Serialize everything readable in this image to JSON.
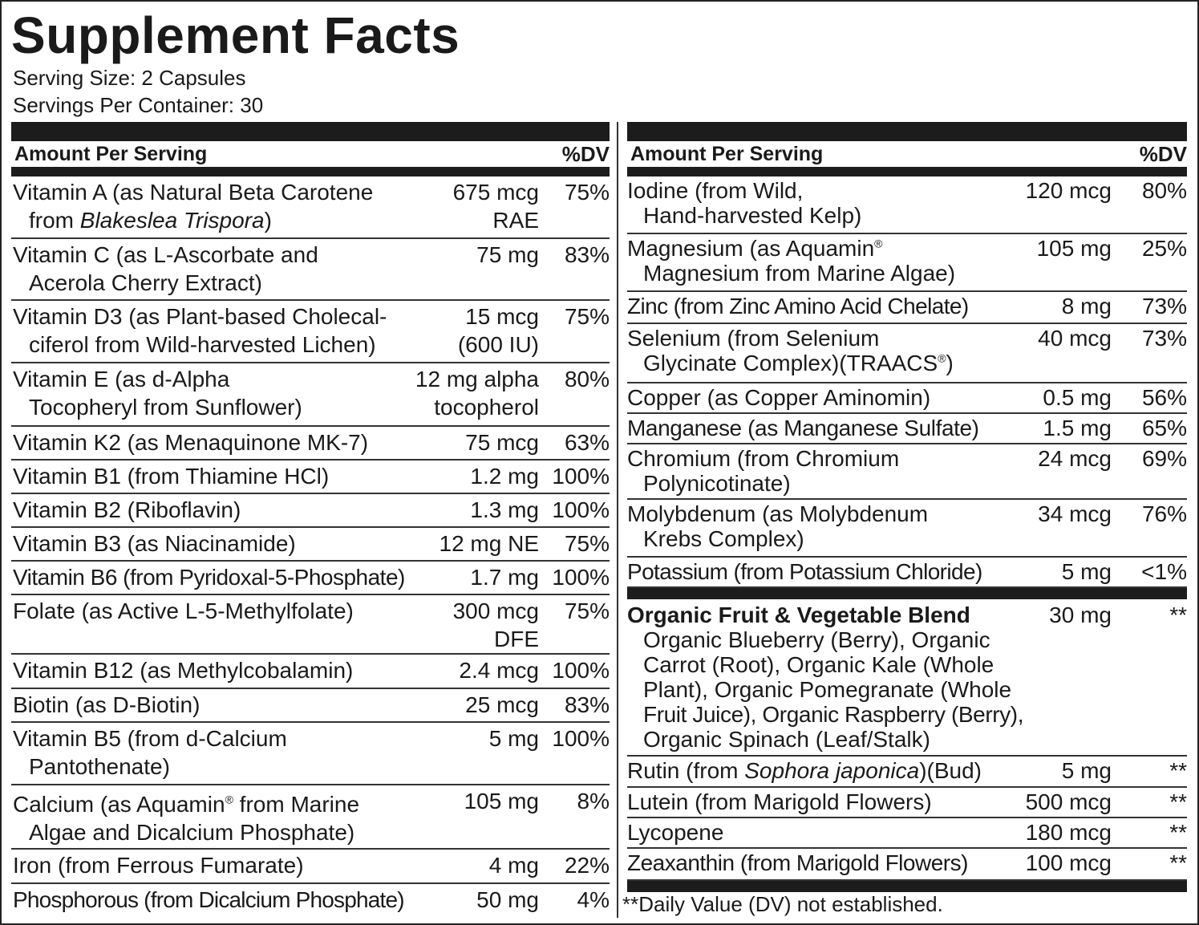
{
  "title": "Supplement Facts",
  "serving_size": "Serving Size: 2 Capsules",
  "servings_per_container": "Servings Per Container: 30",
  "header": {
    "amount": "Amount Per Serving",
    "dv": "%DV"
  },
  "left_rows": [
    {
      "line1": "Vitamin A (as Natural Beta Carotene",
      "line2_pre": "from ",
      "line2_ital": "Blakeslea Trispora",
      "line2_post": ")",
      "amount": "675 mcg\nRAE",
      "dv": "75%"
    },
    {
      "line1": "Vitamin C (as L-Ascorbate and",
      "line2": "Acerola Cherry Extract)",
      "amount": "75 mg",
      "dv": "83%"
    },
    {
      "line1": "Vitamin D3 (as Plant-based Cholecal-",
      "line2": "ciferol from Wild-harvested Lichen)",
      "amount": "15 mcg\n(600 IU)",
      "dv": "75%"
    },
    {
      "line1": "Vitamin E (as d-Alpha",
      "line2": "Tocopheryl from Sunflower)",
      "amount": "12 mg alpha\ntocopherol",
      "dv": "80%"
    },
    {
      "line1": "Vitamin K2 (as Menaquinone MK-7)",
      "amount": "75 mcg",
      "dv": "63%"
    },
    {
      "line1": "Vitamin B1 (from Thiamine HCl)",
      "amount": "1.2 mg",
      "dv": "100%"
    },
    {
      "line1": "Vitamin B2 (Riboflavin)",
      "amount": "1.3 mg",
      "dv": "100%"
    },
    {
      "line1": "Vitamin B3 (as Niacinamide)",
      "amount": "12 mg NE",
      "dv": "75%"
    },
    {
      "line1": "Vitamin B6 (from Pyridoxal-5-Phosphate)",
      "amount": "1.7 mg",
      "dv": "100%"
    },
    {
      "line1": "Folate (as Active L-5-Methylfolate)",
      "amount": "300 mcg\nDFE",
      "dv": "75%"
    },
    {
      "line1": "Vitamin B12 (as Methylcobalamin)",
      "amount": "2.4 mcg",
      "dv": "100%"
    },
    {
      "line1": "Biotin (as D-Biotin)",
      "amount": "25 mcg",
      "dv": "83%"
    },
    {
      "line1": "Vitamin B5 (from d-Calcium",
      "line2": "Pantothenate)",
      "amount": "5 mg",
      "dv": "100%"
    },
    {
      "line1_pre": "Calcium (as Aquamin",
      "line1_sup": "®",
      "line1_post": " from Marine",
      "line2": "Algae and Dicalcium Phosphate)",
      "amount": "105 mg",
      "dv": "8%"
    },
    {
      "line1": "Iron (from Ferrous Fumarate)",
      "amount": "4 mg",
      "dv": "22%"
    },
    {
      "line1": "Phosphorous (from Dicalcium Phosphate)",
      "amount": "50 mg",
      "dv": "4%"
    }
  ],
  "right_rows": [
    {
      "line1": "Iodine (from Wild,",
      "line2": "Hand-harvested Kelp)",
      "amount": "120 mcg",
      "dv": "80%"
    },
    {
      "line1_pre": "Magnesium (as Aquamin",
      "line1_sup": "®",
      "line2": "Magnesium from Marine Algae)",
      "amount": "105 mg",
      "dv": "25%"
    },
    {
      "line1": "Zinc (from Zinc Amino Acid Chelate)",
      "amount": "8 mg",
      "dv": "73%"
    },
    {
      "line1": "Selenium (from Selenium",
      "line2_pre": "Glycinate Complex)(TRAACS",
      "line2_sup": "®",
      "line2_post": ")",
      "amount": "40 mcg",
      "dv": "73%"
    },
    {
      "line1": "Copper (as Copper Aminomin)",
      "amount": "0.5 mg",
      "dv": "56%"
    },
    {
      "line1": "Manganese (as Manganese Sulfate)",
      "amount": "1.5 mg",
      "dv": "65%"
    },
    {
      "line1": "Chromium (from Chromium",
      "line2": "Polynicotinate)",
      "amount": "24 mcg",
      "dv": "69%"
    },
    {
      "line1": "Molybdenum (as Molybdenum",
      "line2": "Krebs Complex)",
      "amount": "34 mcg",
      "dv": "76%"
    },
    {
      "line1": "Potassium (from Potassium Chloride)",
      "amount": "5 mg",
      "dv": "<1%"
    }
  ],
  "blend": {
    "name": "Organic Fruit & Vegetable Blend",
    "amount": "30 mg",
    "dv": "**",
    "ingredients": [
      "Organic Blueberry (Berry), Organic",
      "Carrot (Root), Organic Kale (Whole",
      "Plant), Organic Pomegranate (Whole",
      "Fruit Juice), Organic Raspberry (Berry),",
      "Organic Spinach (Leaf/Stalk)"
    ]
  },
  "other_rows": [
    {
      "line1_pre": "Rutin (from ",
      "line1_ital": "Sophora japonica",
      "line1_post": ")(Bud)",
      "amount": "5 mg",
      "dv": "**"
    },
    {
      "line1": "Lutein (from Marigold Flowers)",
      "amount": "500 mcg",
      "dv": "**"
    },
    {
      "line1": "Lycopene",
      "amount": "180 mcg",
      "dv": "**"
    },
    {
      "line1": "Zeaxanthin (from Marigold Flowers)",
      "amount": "100 mcg",
      "dv": "**"
    }
  ],
  "footnote": "**Daily Value (DV) not established."
}
